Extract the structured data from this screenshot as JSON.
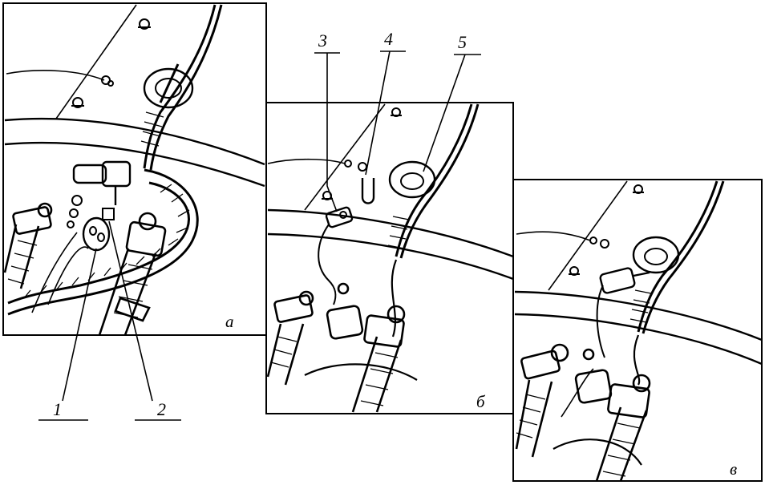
{
  "figure": {
    "callouts": [
      "1",
      "2",
      "3",
      "4",
      "5"
    ],
    "panels": [
      {
        "id": "a",
        "label": "а"
      },
      {
        "id": "b",
        "label": "б"
      },
      {
        "id": "c",
        "label": "в"
      }
    ]
  },
  "colors": {
    "ink": "#000000",
    "paper": "#ffffff"
  }
}
